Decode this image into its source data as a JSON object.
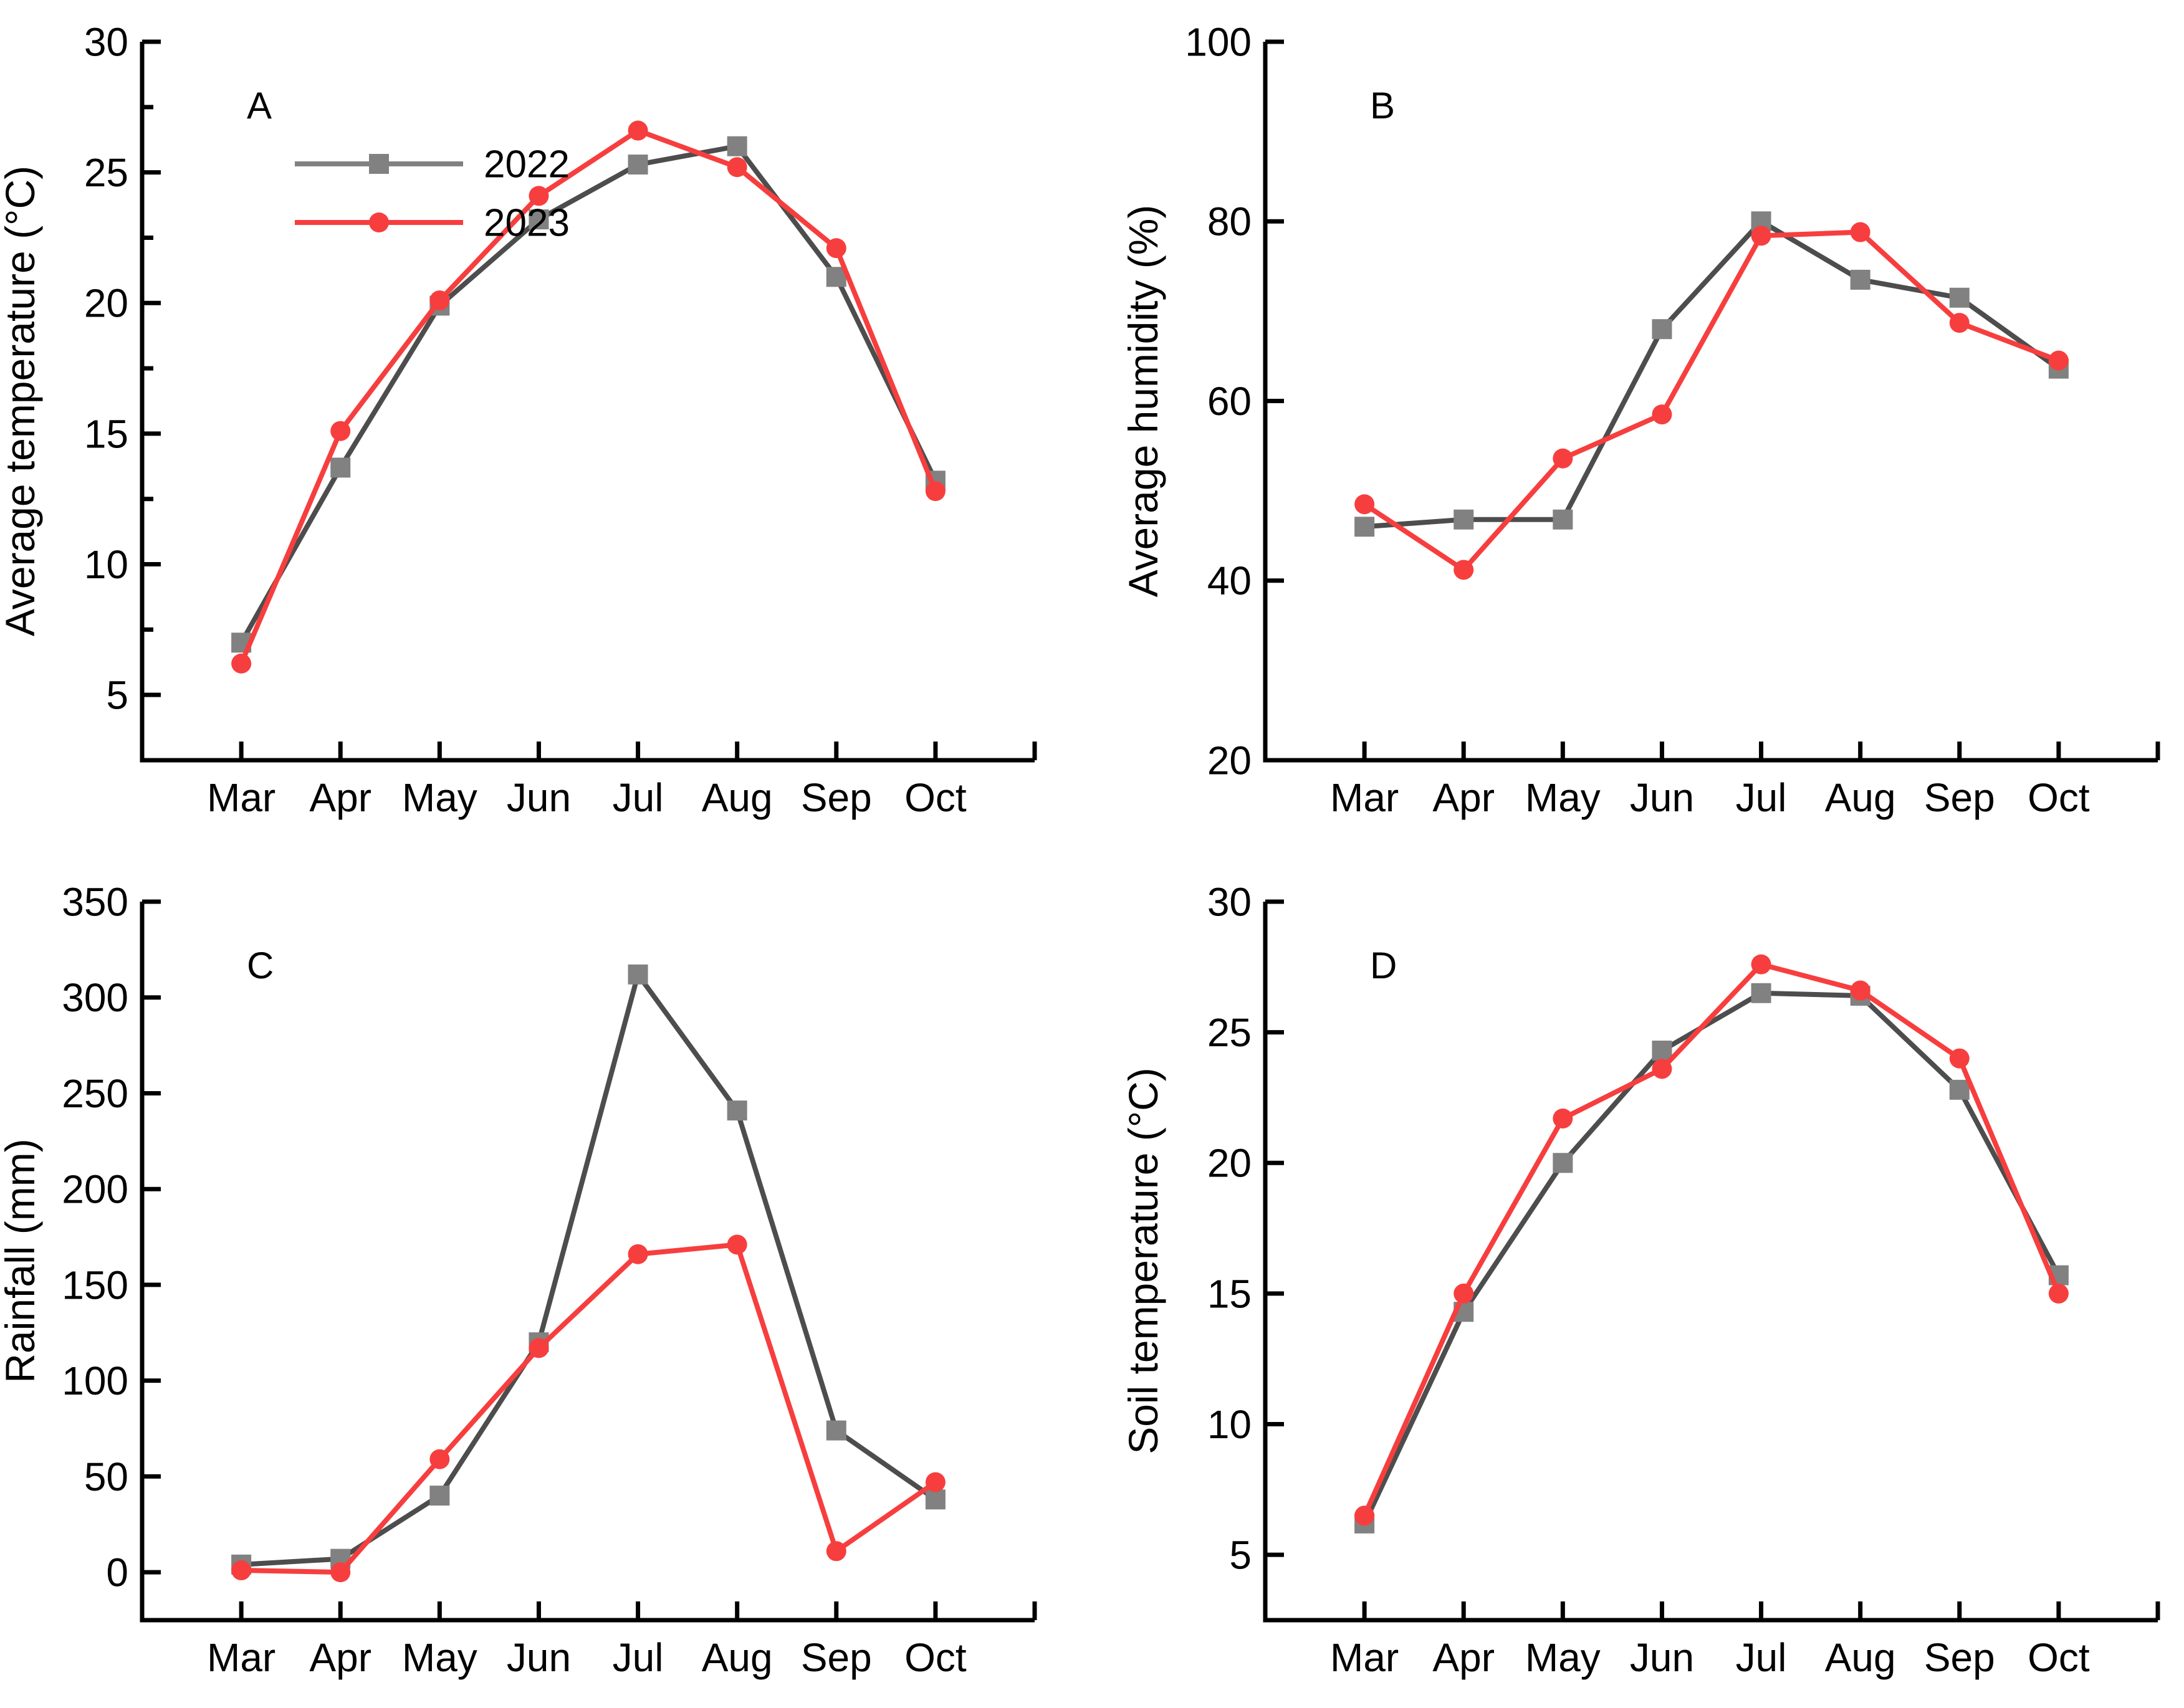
{
  "colors": {
    "background": "#ffffff",
    "axis": "#000000",
    "text": "#000000",
    "series_2022_line": "#4d4d4d",
    "series_2022_marker": "#818181",
    "series_2023_line": "#f73e3e",
    "series_2023_marker": "#f73e3e"
  },
  "legend": {
    "visible_in_panel": "A",
    "entries": [
      {
        "label": "2022",
        "marker": "square"
      },
      {
        "label": "2023",
        "marker": "circle"
      }
    ]
  },
  "chart_data": [
    {
      "type": "line",
      "panel_label": "A",
      "title": "",
      "xlabel": "",
      "ylabel": "Average temperature (°C)",
      "categories": [
        "Mar",
        "Apr",
        "May",
        "Jun",
        "Jul",
        "Aug",
        "Sep",
        "Oct"
      ],
      "ylim": [
        2.5,
        30
      ],
      "yticks": [
        5,
        10,
        15,
        20,
        25,
        30
      ],
      "yminor": [
        7.5,
        12.5,
        17.5,
        22.5,
        27.5
      ],
      "grid": false,
      "legend_visible": true,
      "series": [
        {
          "name": "2022",
          "marker": "square",
          "values": [
            7.0,
            13.7,
            19.9,
            23.2,
            25.3,
            26.0,
            21.0,
            13.2
          ]
        },
        {
          "name": "2023",
          "marker": "circle",
          "values": [
            6.2,
            15.1,
            20.1,
            24.1,
            26.6,
            25.2,
            22.1,
            12.8
          ]
        }
      ]
    },
    {
      "type": "line",
      "panel_label": "B",
      "title": "",
      "xlabel": "",
      "ylabel": "Average humidity (%)",
      "categories": [
        "Mar",
        "Apr",
        "May",
        "Jun",
        "Jul",
        "Aug",
        "Sep",
        "Oct"
      ],
      "ylim": [
        20,
        100
      ],
      "yticks": [
        20,
        40,
        60,
        80,
        100
      ],
      "yminor": [],
      "grid": false,
      "legend_visible": false,
      "series": [
        {
          "name": "2022",
          "marker": "square",
          "values": [
            46.0,
            46.8,
            46.8,
            68.0,
            80.0,
            73.5,
            71.5,
            63.6
          ]
        },
        {
          "name": "2023",
          "marker": "circle",
          "values": [
            48.5,
            41.2,
            53.6,
            58.5,
            78.4,
            78.8,
            68.7,
            64.5
          ]
        }
      ]
    },
    {
      "type": "line",
      "panel_label": "C",
      "title": "",
      "xlabel": "",
      "ylabel": "Rainfall (mm)",
      "categories": [
        "Mar",
        "Apr",
        "May",
        "Jun",
        "Jul",
        "Aug",
        "Sep",
        "Oct"
      ],
      "ylim": [
        -25,
        350
      ],
      "yticks": [
        0,
        50,
        100,
        150,
        200,
        250,
        300,
        350
      ],
      "yminor": [],
      "grid": false,
      "legend_visible": false,
      "series": [
        {
          "name": "2022",
          "marker": "square",
          "values": [
            4,
            7,
            40,
            120,
            312,
            241,
            74,
            38
          ]
        },
        {
          "name": "2023",
          "marker": "circle",
          "values": [
            1,
            0,
            59,
            117,
            166,
            171,
            11,
            47
          ]
        }
      ]
    },
    {
      "type": "line",
      "panel_label": "D",
      "title": "",
      "xlabel": "",
      "ylabel": "Soil temperature (°C)",
      "categories": [
        "Mar",
        "Apr",
        "May",
        "Jun",
        "Jul",
        "Aug",
        "Sep",
        "Oct"
      ],
      "ylim": [
        2.5,
        30
      ],
      "yticks": [
        5,
        10,
        15,
        20,
        25,
        30
      ],
      "yminor": [],
      "grid": false,
      "legend_visible": false,
      "series": [
        {
          "name": "2022",
          "marker": "square",
          "values": [
            6.2,
            14.3,
            20.0,
            24.3,
            26.5,
            26.4,
            22.8,
            15.7
          ]
        },
        {
          "name": "2023",
          "marker": "circle",
          "values": [
            6.5,
            15.0,
            21.7,
            23.6,
            27.6,
            26.6,
            24.0,
            15.0
          ]
        }
      ]
    }
  ]
}
